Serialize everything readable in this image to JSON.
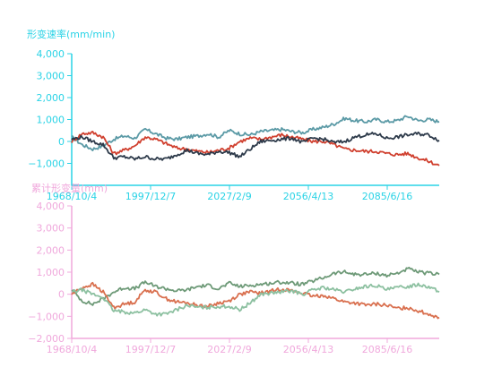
{
  "chart_data": [
    {
      "type": "line",
      "title": "",
      "ylabel": "形变速率(mm/min)",
      "xlabel": "",
      "x_ticks": [
        "1968/10/4",
        "1997/12/7",
        "2027/2/9",
        "2056/4/13",
        "2085/6/16"
      ],
      "ylim": [
        -2000,
        4000
      ],
      "y_ticks": [
        -1000,
        0,
        1000,
        2000,
        3000,
        4000
      ],
      "y_tick_labels": [
        "−1,000",
        "0",
        "1,000",
        "2,000",
        "3,000",
        "4,000"
      ],
      "axis_color": "#2ad3e6",
      "label_color": "#2ad3e6",
      "grid": false,
      "legend": "none",
      "series": [
        {
          "color": "#5b9aa6",
          "values": [
            200,
            -150,
            -350,
            -200,
            100,
            250,
            150,
            550,
            350,
            150,
            100,
            200,
            250,
            350,
            200,
            500,
            350,
            300,
            450,
            500,
            550,
            450,
            400,
            550,
            650,
            800,
            1050,
            950,
            900,
            1000,
            900,
            950,
            1150,
            950,
            1000,
            900
          ]
        },
        {
          "color": "#d0402f",
          "values": [
            0,
            350,
            400,
            200,
            -550,
            -400,
            -200,
            200,
            100,
            -100,
            -300,
            -350,
            -450,
            -500,
            -400,
            -300,
            0,
            150,
            100,
            200,
            300,
            200,
            100,
            0,
            0,
            -150,
            -350,
            -400,
            -450,
            -450,
            -550,
            -600,
            -550,
            -750,
            -900,
            -1100
          ]
        },
        {
          "color": "#2d3a4a",
          "values": [
            100,
            200,
            0,
            -150,
            -750,
            -700,
            -800,
            -700,
            -800,
            -800,
            -600,
            -400,
            -550,
            -600,
            -450,
            -500,
            -700,
            -350,
            0,
            50,
            100,
            150,
            -50,
            150,
            100,
            -50,
            0,
            200,
            300,
            350,
            150,
            200,
            300,
            350,
            300,
            50
          ]
        }
      ]
    },
    {
      "type": "line",
      "title": "",
      "ylabel": "累计形变量(mm)",
      "xlabel": "",
      "x_ticks": [
        "1968/10/4",
        "1997/12/7",
        "2027/2/9",
        "2056/4/13",
        "2085/6/16"
      ],
      "ylim": [
        -2000,
        4000
      ],
      "y_ticks": [
        -2000,
        -1000,
        0,
        1000,
        2000,
        3000,
        4000
      ],
      "y_tick_labels": [
        "−2,000",
        "−1,000",
        "0",
        "1,000",
        "2,000",
        "3,000",
        "4,000"
      ],
      "axis_color": "#f0a8dc",
      "label_color": "#f0a8dc",
      "grid": false,
      "legend": "none",
      "series": [
        {
          "color": "#6e9a78",
          "values": [
            200,
            -300,
            -450,
            -200,
            100,
            300,
            250,
            550,
            350,
            250,
            150,
            200,
            350,
            400,
            250,
            500,
            350,
            400,
            450,
            500,
            550,
            500,
            450,
            600,
            750,
            950,
            1000,
            900,
            900,
            950,
            850,
            950,
            1150,
            1000,
            950,
            900
          ]
        },
        {
          "color": "#d9704f",
          "values": [
            0,
            300,
            450,
            100,
            -600,
            -450,
            -350,
            200,
            100,
            -200,
            -350,
            -400,
            -500,
            -550,
            -400,
            -300,
            0,
            100,
            50,
            150,
            250,
            150,
            50,
            -100,
            -50,
            -200,
            -350,
            -400,
            -500,
            -450,
            -500,
            -650,
            -600,
            -750,
            -900,
            -1050
          ]
        },
        {
          "color": "#8cc0a0",
          "values": [
            100,
            200,
            0,
            -150,
            -750,
            -800,
            -850,
            -700,
            -900,
            -900,
            -700,
            -500,
            -600,
            -600,
            -550,
            -550,
            -700,
            -400,
            0,
            50,
            100,
            150,
            0,
            200,
            300,
            200,
            100,
            250,
            350,
            400,
            200,
            300,
            350,
            450,
            350,
            100
          ]
        }
      ]
    }
  ]
}
